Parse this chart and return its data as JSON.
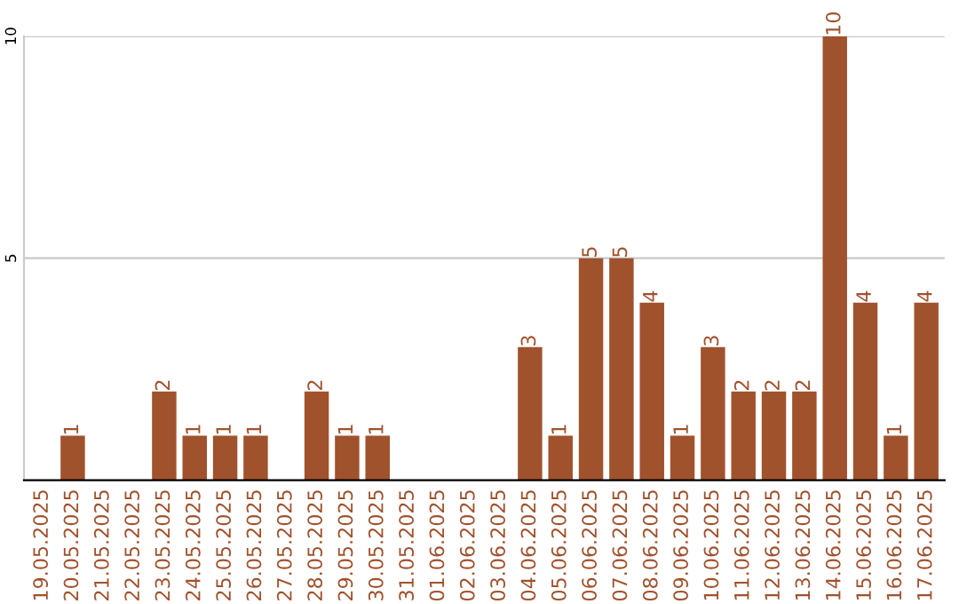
{
  "chart_data": {
    "type": "bar",
    "categories": [
      "19.05.2025",
      "20.05.2025",
      "21.05.2025",
      "22.05.2025",
      "23.05.2025",
      "24.05.2025",
      "25.05.2025",
      "26.05.2025",
      "27.05.2025",
      "28.05.2025",
      "29.05.2025",
      "30.05.2025",
      "31.05.2025",
      "01.06.2025",
      "02.06.2025",
      "03.06.2025",
      "04.06.2025",
      "05.06.2025",
      "06.06.2025",
      "07.06.2025",
      "08.06.2025",
      "09.06.2025",
      "10.06.2025",
      "11.06.2025",
      "12.06.2025",
      "13.06.2025",
      "14.06.2025",
      "15.06.2025",
      "16.06.2025",
      "17.06.2025"
    ],
    "values": [
      0,
      1,
      0,
      0,
      2,
      1,
      1,
      1,
      0,
      2,
      1,
      1,
      0,
      0,
      0,
      0,
      3,
      1,
      5,
      5,
      4,
      1,
      3,
      2,
      2,
      2,
      10,
      4,
      1,
      4
    ],
    "value_labels": [
      null,
      "1",
      null,
      null,
      "2",
      "1",
      "1",
      "1",
      null,
      "2",
      "1",
      "1",
      null,
      null,
      null,
      null,
      "3",
      "1",
      "5",
      "5",
      "4",
      "1",
      "3",
      "2",
      "2",
      "2",
      "10",
      "4",
      "1",
      "4"
    ],
    "color": "#a0522d",
    "ylim": [
      0,
      10
    ],
    "yticks": [
      5,
      10
    ],
    "grid": "y"
  }
}
